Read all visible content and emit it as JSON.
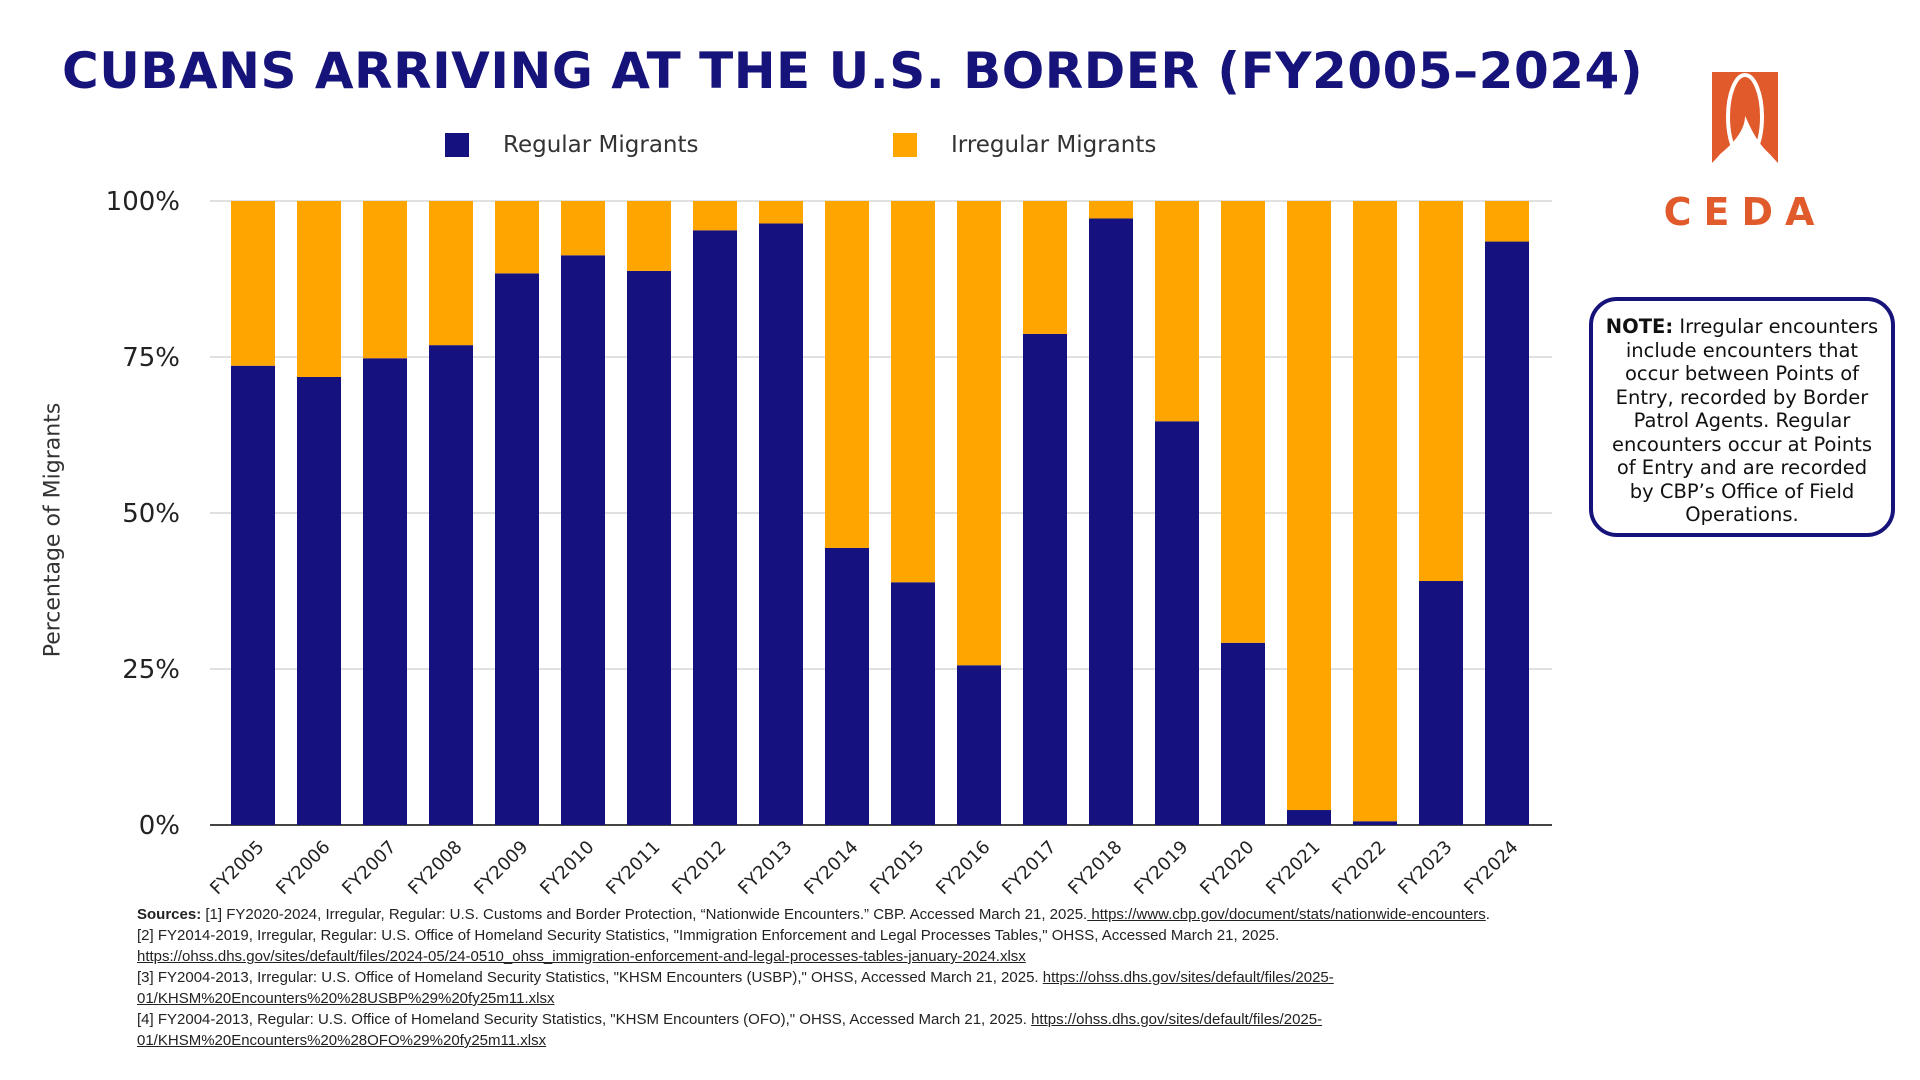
{
  "title": "CUBANS ARRIVING AT THE U.S. BORDER (FY2005–2024)",
  "colors": {
    "regular": "#15127f",
    "irregular": "#ffa500",
    "title": "#16137a",
    "logo": "#e05a2b"
  },
  "logo": {
    "text": "CEDA"
  },
  "note": {
    "label": "NOTE:",
    "text": " Irregular encounters include encounters that occur between Points of Entry, recorded by Border Patrol Agents. Regular encounters occur at Points of Entry and are recorded by CBP’s Office of Field Operations."
  },
  "chart_data": {
    "type": "bar",
    "stacked": true,
    "ylabel": "Percentage of Migrants",
    "ylim": [
      0,
      100
    ],
    "yticks": [
      "0%",
      "25%",
      "50%",
      "75%",
      "100%"
    ],
    "grid": true,
    "legend_placement": "top",
    "categories": [
      "FY2005",
      "FY2006",
      "FY2007",
      "FY2008",
      "FY2009",
      "FY2010",
      "FY2011",
      "FY2012",
      "FY2013",
      "FY2014",
      "FY2015",
      "FY2016",
      "FY2017",
      "FY2018",
      "FY2019",
      "FY2020",
      "FY2021",
      "FY2022",
      "FY2023",
      "FY2024"
    ],
    "series": [
      {
        "name": "Regular Migrants",
        "values": [
          73.6,
          71.8,
          74.8,
          76.9,
          88.4,
          91.3,
          88.8,
          95.3,
          96.4,
          44.4,
          38.9,
          25.6,
          78.7,
          97.2,
          64.7,
          29.2,
          2.4,
          0.6,
          39.1,
          93.5
        ]
      },
      {
        "name": "Irregular Migrants",
        "values": [
          26.4,
          28.2,
          25.2,
          23.1,
          11.6,
          8.7,
          11.2,
          4.7,
          3.6,
          55.6,
          61.1,
          74.4,
          21.3,
          2.8,
          35.3,
          70.8,
          97.6,
          99.4,
          60.9,
          6.5
        ]
      }
    ]
  },
  "sources": {
    "label": "Sources:",
    "s1": " [1] FY2020-2024, Irregular, Regular: U.S. Customs and Border Protection, “Nationwide Encounters.” CBP. Accessed March 21, 2025.",
    "s1_link": " https://www.cbp.gov/document/stats/nationwide-encounters",
    "s2": "[2] FY2014-2019, Irregular, Regular: U.S. Office of Homeland Security Statistics, \"Immigration Enforcement and Legal Processes Tables,\" OHSS, Accessed March 21, 2025.",
    "s2_link": "https://ohss.dhs.gov/sites/default/files/2024-05/24-0510_ohss_immigration-enforcement-and-legal-processes-tables-january-2024.xlsx",
    "s3": "[3] FY2004-2013, Irregular: U.S. Office of Homeland Security Statistics, \"KHSM Encounters (USBP),\" OHSS, Accessed March 21, 2025. ",
    "s3_link": "https://ohss.dhs.gov/sites/default/files/2025-01/KHSM%20Encounters%20%28USBP%29%20fy25m11.xlsx",
    "s4": "[4] FY2004-2013, Regular: U.S. Office of Homeland Security Statistics, \"KHSM Encounters (OFO),\" OHSS, Accessed March 21, 2025. ",
    "s4_link": "https://ohss.dhs.gov/sites/default/files/2025-01/KHSM%20Encounters%20%28OFO%29%20fy25m11.xlsx"
  }
}
